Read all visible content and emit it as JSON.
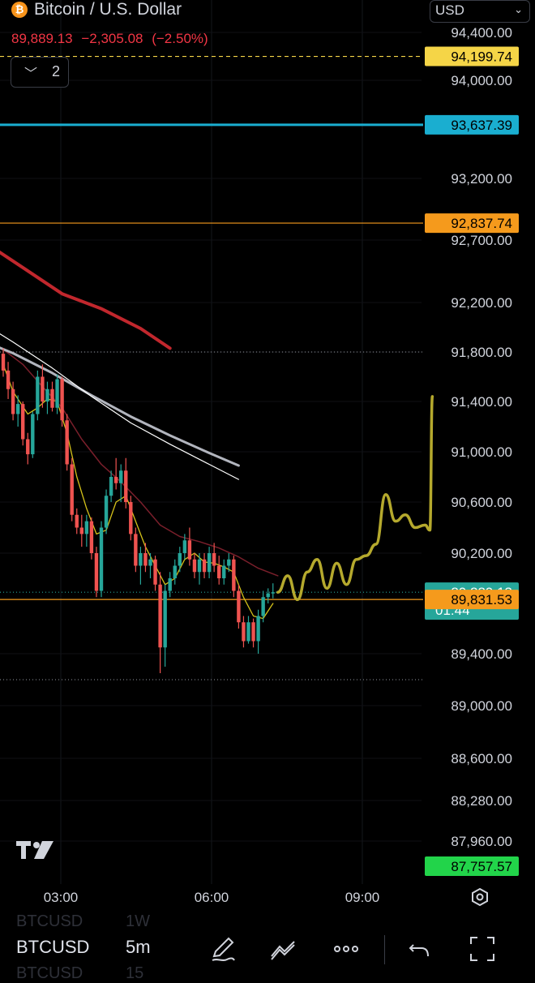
{
  "header": {
    "coin_glyph": "₿",
    "title": "Bitcoin / U.S. Dollar",
    "price": "89,889.13",
    "change": "−2,305.08",
    "change_pct": "(−2.50%)",
    "indicator_count": "2",
    "currency": "USD"
  },
  "bottom_bar": {
    "symbol": "BTCUSD",
    "timeframe": "5m",
    "ghost_symbol_top": "BTCUSD",
    "ghost_timeframe_top": "1W",
    "ghost_symbol_bottom": "BTCUSD",
    "ghost_timeframe_bottom": "15",
    "tools": [
      "pen-icon",
      "line-tools-icon",
      "more-icon",
      "undo-icon",
      "fullscreen-icon"
    ]
  },
  "colors": {
    "background": "#000000",
    "candle_up": "#26a69a",
    "candle_down": "#ef5350",
    "ma_red_thick": "#c1272d",
    "ma_grey": "#b2b5be",
    "ma_white": "#ffffff",
    "ma_dark_red": "#7a1f2b",
    "ma_yellow": "#d4c21a",
    "projection": "#b5a92d",
    "line_yellow_dashed": "#f0d43a",
    "line_cyan": "#1f9bbf",
    "line_orange": "#f09a1a",
    "label_green": "#22d44a"
  },
  "chart_data": {
    "type": "candlestick",
    "symbol": "BTCUSD",
    "interval": "5m",
    "y_axis": {
      "ticks": [
        94400,
        94000,
        93200,
        92700,
        92200,
        91800,
        91400,
        91000,
        90600,
        90200,
        89400,
        89000,
        88600,
        88280,
        87960
      ],
      "tick_labels": [
        "94,400.00",
        "94,000.00",
        "93,200.00",
        "92,700.00",
        "92,200.00",
        "91,800.00",
        "91,400.00",
        "91,000.00",
        "90,600.00",
        "90,200.00",
        "89,400.00",
        "89,000.00",
        "88,600.00",
        "88,280.00",
        "87,960.00"
      ]
    },
    "x_axis": {
      "ticks": [
        "03:00",
        "06:00",
        "09:00"
      ]
    },
    "price_labels": [
      {
        "value": 94199.74,
        "text": "94,199.74",
        "color": "#f5d547",
        "text_color": "#000000",
        "style": "dashed"
      },
      {
        "value": 93637.39,
        "text": "93,637.39",
        "color": "#1aaed0",
        "text_color": "#000000",
        "style": "solid"
      },
      {
        "value": 92837.74,
        "text": "92,837.74",
        "color": "#f59a1c",
        "text_color": "#000000",
        "style": "solid"
      },
      {
        "value": 89889.13,
        "text": "89,889.13",
        "sub": "01:44",
        "color": "#26a69a",
        "text_color": "#ffffff",
        "style": "dotted"
      },
      {
        "value": 89831.53,
        "text": "89,831.53",
        "color": "#f59a1c",
        "text_color": "#000000",
        "style": "solid"
      },
      {
        "value": 87757.57,
        "text": "87,757.57",
        "color": "#22d44a",
        "text_color": "#000000",
        "style": "none"
      }
    ],
    "dotted_levels": [
      91800,
      89200
    ],
    "candles": [
      [
        91786,
        91830,
        91600,
        91650
      ],
      [
        91650,
        91720,
        91420,
        91500
      ],
      [
        91500,
        91560,
        91250,
        91300
      ],
      [
        91300,
        91450,
        91200,
        91380
      ],
      [
        91380,
        91400,
        91050,
        91100
      ],
      [
        91100,
        91150,
        90900,
        90980
      ],
      [
        90980,
        91320,
        90950,
        91300
      ],
      [
        91300,
        91650,
        91250,
        91600
      ],
      [
        91600,
        91700,
        91350,
        91400
      ],
      [
        91400,
        91560,
        91300,
        91500
      ],
      [
        91500,
        91560,
        91320,
        91350
      ],
      [
        91350,
        91620,
        91300,
        91580
      ],
      [
        91580,
        91600,
        91200,
        91250
      ],
      [
        91250,
        91300,
        90850,
        90900
      ],
      [
        90900,
        90950,
        90450,
        90500
      ],
      [
        90500,
        90550,
        90350,
        90400
      ],
      [
        90400,
        90500,
        90250,
        90350
      ],
      [
        90350,
        90500,
        90250,
        90450
      ],
      [
        90450,
        90480,
        90150,
        90200
      ],
      [
        90200,
        90250,
        89850,
        89900
      ],
      [
        89900,
        90450,
        89850,
        90400
      ],
      [
        90400,
        90700,
        90350,
        90650
      ],
      [
        90650,
        90850,
        90600,
        90800
      ],
      [
        90800,
        90950,
        90700,
        90750
      ],
      [
        90750,
        90900,
        90600,
        90850
      ],
      [
        90850,
        90950,
        90550,
        90600
      ],
      [
        90600,
        90650,
        90300,
        90350
      ],
      [
        90350,
        90400,
        90050,
        90100
      ],
      [
        90100,
        90250,
        89950,
        90200
      ],
      [
        90200,
        90280,
        90050,
        90100
      ],
      [
        90100,
        90200,
        90000,
        90150
      ],
      [
        90150,
        90180,
        89900,
        89950
      ],
      [
        89950,
        90050,
        89250,
        89450
      ],
      [
        89450,
        89950,
        89300,
        89900
      ],
      [
        89900,
        90050,
        89850,
        90000
      ],
      [
        90000,
        90150,
        89950,
        90100
      ],
      [
        90100,
        90250,
        90050,
        90200
      ],
      [
        90200,
        90350,
        90150,
        90300
      ],
      [
        90300,
        90400,
        90100,
        90150
      ],
      [
        90150,
        90200,
        90000,
        90050
      ],
      [
        90050,
        90200,
        89950,
        90150
      ],
      [
        90150,
        90200,
        90000,
        90050
      ],
      [
        90050,
        90250,
        90000,
        90200
      ],
      [
        90200,
        90280,
        90050,
        90100
      ],
      [
        90100,
        90180,
        89950,
        90000
      ],
      [
        90000,
        90150,
        89950,
        90100
      ],
      [
        90100,
        90200,
        90050,
        90150
      ],
      [
        90150,
        90180,
        89850,
        89900
      ],
      [
        89900,
        89950,
        89600,
        89650
      ],
      [
        89650,
        89700,
        89450,
        89500
      ],
      [
        89500,
        89700,
        89480,
        89650
      ],
      [
        89650,
        89680,
        89450,
        89500
      ],
      [
        89500,
        89750,
        89400,
        89700
      ],
      [
        89700,
        89900,
        89650,
        89850
      ],
      [
        89850,
        89920,
        89800,
        89880
      ],
      [
        89880,
        89960,
        89840,
        89889
      ]
    ],
    "moving_averages": [
      {
        "name": "MA yellow",
        "color": "#d4c21a",
        "width": 1.3,
        "points": [
          [
            0,
            91700
          ],
          [
            2,
            91480
          ],
          [
            5,
            91300
          ],
          [
            7,
            91350
          ],
          [
            9,
            91420
          ],
          [
            11,
            91400
          ],
          [
            13,
            91150
          ],
          [
            15,
            90800
          ],
          [
            17,
            90550
          ],
          [
            19,
            90350
          ],
          [
            21,
            90380
          ],
          [
            23,
            90600
          ],
          [
            25,
            90650
          ],
          [
            27,
            90450
          ],
          [
            29,
            90250
          ],
          [
            31,
            90100
          ],
          [
            33,
            89950
          ],
          [
            35,
            90000
          ],
          [
            37,
            90150
          ],
          [
            39,
            90200
          ],
          [
            41,
            90130
          ],
          [
            43,
            90120
          ],
          [
            45,
            90090
          ],
          [
            47,
            90050
          ],
          [
            49,
            89850
          ],
          [
            51,
            89700
          ],
          [
            53,
            89680
          ],
          [
            55,
            89800
          ]
        ]
      },
      {
        "name": "MA dark red",
        "color": "#7a1f2b",
        "width": 1.5,
        "points": [
          [
            -4,
            91900
          ],
          [
            0,
            91820
          ],
          [
            4,
            91700
          ],
          [
            8,
            91520
          ],
          [
            12,
            91350
          ],
          [
            16,
            91100
          ],
          [
            20,
            90900
          ],
          [
            24,
            90760
          ],
          [
            28,
            90600
          ],
          [
            32,
            90420
          ],
          [
            36,
            90330
          ],
          [
            40,
            90290
          ],
          [
            44,
            90240
          ],
          [
            48,
            90170
          ],
          [
            52,
            90080
          ],
          [
            56,
            90020
          ]
        ]
      },
      {
        "name": "MA grey",
        "color": "#b2b5be",
        "width": 3,
        "points": [
          [
            -22,
            92150
          ],
          [
            -14,
            92030
          ],
          [
            -6,
            91920
          ],
          [
            2,
            91790
          ],
          [
            10,
            91630
          ],
          [
            18,
            91450
          ],
          [
            26,
            91280
          ],
          [
            34,
            91130
          ],
          [
            42,
            90990
          ],
          [
            48,
            90890
          ]
        ]
      },
      {
        "name": "MA white",
        "color": "#ffffff",
        "width": 1.2,
        "points": [
          [
            -22,
            92380
          ],
          [
            -14,
            92230
          ],
          [
            -6,
            92080
          ],
          [
            2,
            91880
          ],
          [
            10,
            91670
          ],
          [
            18,
            91440
          ],
          [
            26,
            91230
          ],
          [
            34,
            91060
          ],
          [
            42,
            90900
          ],
          [
            48,
            90780
          ]
        ]
      },
      {
        "name": "MA red",
        "color": "#c1272d",
        "width": 4,
        "points": [
          [
            -24,
            93250
          ],
          [
            -14,
            93000
          ],
          [
            -6,
            92740
          ],
          [
            4,
            92480
          ],
          [
            12,
            92270
          ],
          [
            20,
            92150
          ],
          [
            28,
            91990
          ],
          [
            34,
            91830
          ]
        ]
      }
    ],
    "projection": [
      [
        56,
        89889
      ],
      [
        58,
        90020
      ],
      [
        60,
        89830
      ],
      [
        62,
        90050
      ],
      [
        64,
        90150
      ],
      [
        66,
        89920
      ],
      [
        68,
        90120
      ],
      [
        70,
        89950
      ],
      [
        72,
        90150
      ],
      [
        74,
        90180
      ],
      [
        76,
        90270
      ],
      [
        78,
        90660
      ],
      [
        80,
        90450
      ],
      [
        82,
        90500
      ],
      [
        84,
        90400
      ],
      [
        86,
        90420
      ],
      [
        87,
        90380
      ],
      [
        87.5,
        91440
      ]
    ]
  }
}
